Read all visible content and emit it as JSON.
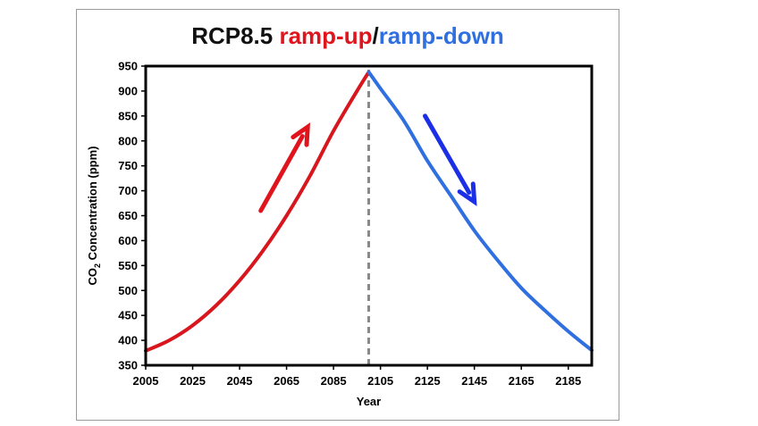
{
  "chart_data": {
    "type": "line",
    "title_parts": [
      {
        "text": "RCP8.5 ",
        "color": "#111111"
      },
      {
        "text": "ramp-up",
        "color": "#e0141c"
      },
      {
        "text": "/",
        "color": "#111111"
      },
      {
        "text": "ramp-down",
        "color": "#2f6fe0"
      }
    ],
    "xlabel": "Year",
    "ylabel_parts": {
      "main": "CO",
      "sub": "2",
      "rest": " Concentration (ppm)"
    },
    "xlim": [
      2005,
      2195
    ],
    "ylim": [
      350,
      950
    ],
    "x_ticks": [
      2005,
      2025,
      2045,
      2065,
      2085,
      2105,
      2125,
      2145,
      2165,
      2185
    ],
    "y_ticks": [
      350,
      400,
      450,
      500,
      550,
      600,
      650,
      700,
      750,
      800,
      850,
      900,
      950
    ],
    "peak_line": {
      "x": 2100,
      "color": "#8a8a8a",
      "style": "dashed"
    },
    "series": [
      {
        "color": "#d8161e",
        "x": [
          2005,
          2015,
          2025,
          2035,
          2045,
          2055,
          2065,
          2075,
          2085,
          2095,
          2100
        ],
        "y": [
          379,
          400,
          430,
          470,
          520,
          580,
          650,
          730,
          820,
          900,
          938
        ]
      },
      {
        "color": "#2f6fe0",
        "x": [
          2100,
          2105,
          2115,
          2125,
          2135,
          2145,
          2155,
          2165,
          2175,
          2185,
          2195
        ],
        "y": [
          938,
          905,
          840,
          760,
          690,
          620,
          560,
          505,
          460,
          418,
          380
        ]
      }
    ],
    "arrows": [
      {
        "direction": "up",
        "color": "#e0141c",
        "from": [
          2054,
          660
        ],
        "to": [
          2074,
          828
        ]
      },
      {
        "direction": "down",
        "color": "#1a2fe6",
        "from": [
          2124,
          850
        ],
        "to": [
          2145,
          678
        ]
      }
    ],
    "grid": false,
    "legend": "none"
  }
}
